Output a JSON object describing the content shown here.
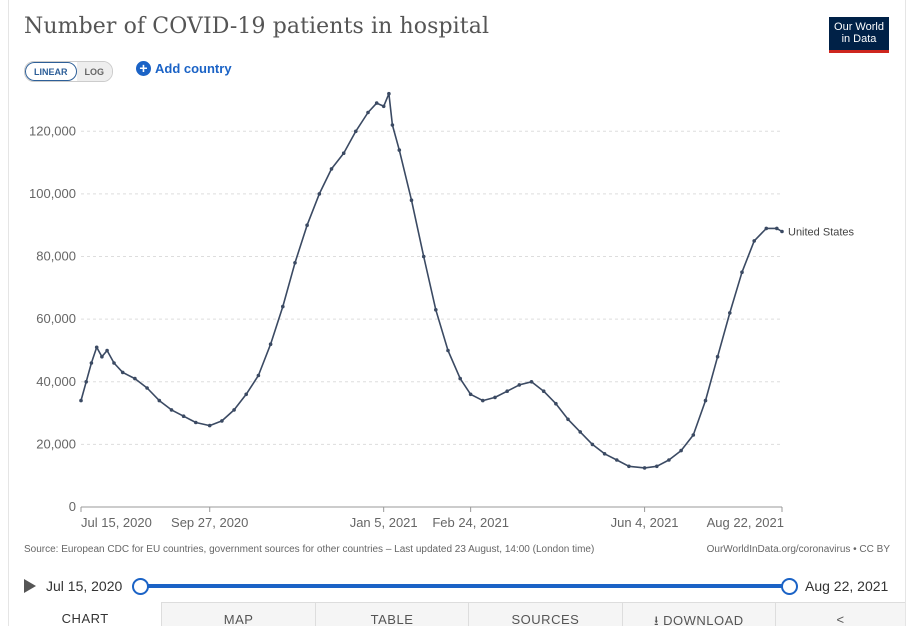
{
  "header": {
    "title": "Number of COVID-19 patients in hospital",
    "logo_line1": "Our World",
    "logo_line2": "in Data"
  },
  "controls": {
    "linear_label": "LINEAR",
    "log_label": "LOG",
    "add_country_label": "Add country"
  },
  "footer": {
    "source": "Source: European CDC for EU countries, government sources for other countries – Last updated 23 August, 14:00 (London time)",
    "credit": "OurWorldInData.org/coronavirus • CC BY"
  },
  "timeline": {
    "start": "Jul 15, 2020",
    "end": "Aug 22, 2021"
  },
  "tabs": [
    "CHART",
    "MAP",
    "TABLE",
    "SOURCES",
    "DOWNLOAD"
  ],
  "colors": {
    "line": "#3b4a63",
    "accent": "#1b63c6",
    "grid": "#dddddd"
  },
  "chart_data": {
    "type": "line",
    "title": "Number of COVID-19 patients in hospital",
    "x_tick_labels": [
      "Jul 15, 2020",
      "Sep 27, 2020",
      "Jan 5, 2021",
      "Feb 24, 2021",
      "Jun 4, 2021",
      "Aug 22, 2021"
    ],
    "x_tick_dates": [
      "2020-07-15",
      "2020-09-27",
      "2021-01-05",
      "2021-02-24",
      "2021-06-04",
      "2021-08-22"
    ],
    "y_tick_labels": [
      "0",
      "20,000",
      "40,000",
      "60,000",
      "80,000",
      "100,000",
      "120,000"
    ],
    "y_tick_values": [
      0,
      20000,
      40000,
      60000,
      80000,
      100000,
      120000
    ],
    "ylim": [
      0,
      130000
    ],
    "grid": true,
    "series": [
      {
        "name": "United States",
        "x": [
          "2020-07-15",
          "2020-07-18",
          "2020-07-21",
          "2020-07-24",
          "2020-07-27",
          "2020-07-30",
          "2020-08-03",
          "2020-08-08",
          "2020-08-15",
          "2020-08-22",
          "2020-08-29",
          "2020-09-05",
          "2020-09-12",
          "2020-09-19",
          "2020-09-27",
          "2020-10-04",
          "2020-10-11",
          "2020-10-18",
          "2020-10-25",
          "2020-11-01",
          "2020-11-08",
          "2020-11-15",
          "2020-11-22",
          "2020-11-29",
          "2020-12-06",
          "2020-12-13",
          "2020-12-20",
          "2020-12-27",
          "2021-01-01",
          "2021-01-05",
          "2021-01-08",
          "2021-01-10",
          "2021-01-14",
          "2021-01-21",
          "2021-01-28",
          "2021-02-04",
          "2021-02-11",
          "2021-02-18",
          "2021-02-24",
          "2021-03-03",
          "2021-03-10",
          "2021-03-17",
          "2021-03-24",
          "2021-03-31",
          "2021-04-07",
          "2021-04-14",
          "2021-04-21",
          "2021-04-28",
          "2021-05-05",
          "2021-05-12",
          "2021-05-19",
          "2021-05-26",
          "2021-06-04",
          "2021-06-11",
          "2021-06-18",
          "2021-06-25",
          "2021-07-02",
          "2021-07-09",
          "2021-07-16",
          "2021-07-23",
          "2021-07-30",
          "2021-08-06",
          "2021-08-13",
          "2021-08-19",
          "2021-08-22"
        ],
        "y": [
          34000,
          40000,
          46000,
          51000,
          48000,
          50000,
          46000,
          43000,
          41000,
          38000,
          34000,
          31000,
          29000,
          27000,
          26000,
          27500,
          31000,
          36000,
          42000,
          52000,
          64000,
          78000,
          90000,
          100000,
          108000,
          113000,
          120000,
          126000,
          129000,
          128000,
          132000,
          122000,
          114000,
          98000,
          80000,
          63000,
          50000,
          41000,
          36000,
          34000,
          35000,
          37000,
          39000,
          40000,
          37000,
          33000,
          28000,
          24000,
          20000,
          17000,
          15000,
          13000,
          12500,
          13000,
          15000,
          18000,
          23000,
          34000,
          48000,
          62000,
          75000,
          85000,
          89000,
          89000,
          88000
        ]
      }
    ]
  }
}
